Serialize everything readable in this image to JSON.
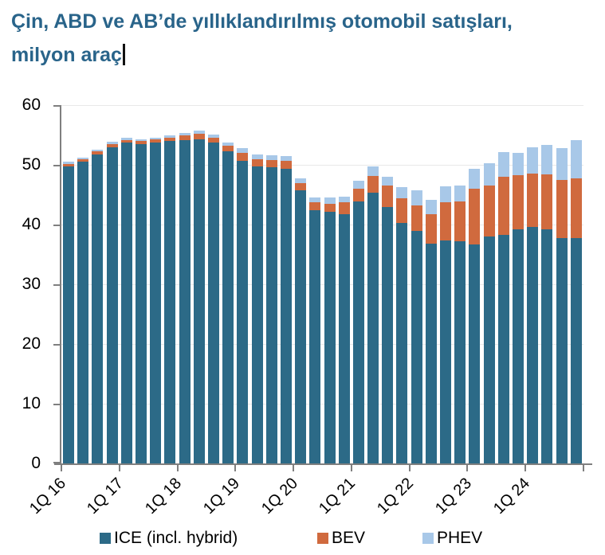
{
  "title": {
    "line1": "Çin, ABD ve AB’de yıllıklandırılmış otomobil satışları,",
    "line2": "milyon araç"
  },
  "colors": {
    "title_text": "#29648A",
    "axis": "#7F7F7F",
    "gridline": "#E9E9E9",
    "ice": "#2C6A87",
    "bev": "#D06A3E",
    "phev": "#A8C8E8"
  },
  "chart_data": {
    "type": "bar",
    "stacked": true,
    "title": "Çin, ABD ve AB’de yıllıklandırılmış otomobil satışları, milyon araç",
    "xlabel": "",
    "ylabel": "",
    "ylim": [
      0,
      60
    ],
    "yticks": [
      0,
      10,
      20,
      30,
      40,
      50,
      60
    ],
    "grid": true,
    "legend_position": "bottom",
    "categories": [
      "1Q16",
      "2Q16",
      "3Q16",
      "4Q16",
      "1Q17",
      "2Q17",
      "3Q17",
      "4Q17",
      "1Q18",
      "2Q18",
      "3Q18",
      "4Q18",
      "1Q19",
      "2Q19",
      "3Q19",
      "4Q19",
      "1Q20",
      "2Q20",
      "3Q20",
      "4Q20",
      "1Q21",
      "2Q21",
      "3Q21",
      "4Q21",
      "1Q22",
      "2Q22",
      "3Q22",
      "4Q22",
      "1Q23",
      "2Q23",
      "3Q23",
      "4Q23",
      "1Q24",
      "2Q24",
      "3Q24",
      "4Q24"
    ],
    "x_tick_labels": [
      "1Q 16",
      "1Q 17",
      "1Q 18",
      "1Q 19",
      "1Q 20",
      "1Q 21",
      "1Q 22",
      "1Q 23",
      "1Q 24"
    ],
    "series": [
      {
        "name": "ICE (incl. hybrid)",
        "color": "#2C6A87",
        "values": [
          49.7,
          50.5,
          51.8,
          52.9,
          53.7,
          53.5,
          53.7,
          54.0,
          54.2,
          54.3,
          53.8,
          52.3,
          50.7,
          49.7,
          49.6,
          49.4,
          45.7,
          42.4,
          42.1,
          41.7,
          43.9,
          45.3,
          42.9,
          40.3,
          38.9,
          36.8,
          37.3,
          37.2,
          36.7,
          38.0,
          38.3,
          39.2,
          39.6,
          39.2,
          37.7,
          37.8
        ]
      },
      {
        "name": "BEV",
        "color": "#D06A3E",
        "values": [
          0.5,
          0.4,
          0.5,
          0.6,
          0.5,
          0.5,
          0.6,
          0.6,
          0.7,
          0.9,
          0.8,
          0.9,
          1.3,
          1.2,
          1.2,
          1.3,
          1.2,
          1.3,
          1.4,
          2.0,
          2.1,
          2.9,
          3.6,
          4.1,
          4.3,
          4.9,
          6.4,
          6.7,
          9.3,
          8.6,
          9.7,
          9.1,
          8.9,
          9.2,
          9.8,
          9.9
        ]
      },
      {
        "name": "PHEV",
        "color": "#A8C8E8",
        "values": [
          0.4,
          0.3,
          0.3,
          0.4,
          0.3,
          0.3,
          0.3,
          0.3,
          0.4,
          0.5,
          0.5,
          0.6,
          0.8,
          0.8,
          0.8,
          0.8,
          0.9,
          0.9,
          1.0,
          1.0,
          1.4,
          1.5,
          1.5,
          1.9,
          2.5,
          2.5,
          2.7,
          2.7,
          3.3,
          3.7,
          4.1,
          3.7,
          4.4,
          4.9,
          5.3,
          6.5
        ]
      }
    ]
  },
  "legend": {
    "items": [
      {
        "label": "ICE (incl. hybrid)",
        "color": "#2C6A87"
      },
      {
        "label": "BEV",
        "color": "#D06A3E"
      },
      {
        "label": "PHEV",
        "color": "#A8C8E8"
      }
    ]
  }
}
